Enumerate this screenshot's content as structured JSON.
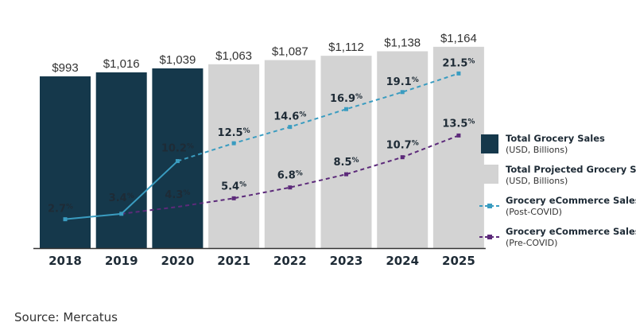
{
  "chart_data": {
    "type": "bar",
    "categories": [
      "2018",
      "2019",
      "2020",
      "2021",
      "2022",
      "2023",
      "2024",
      "2025"
    ],
    "ylim": [
      0,
      1200
    ],
    "bar_series": [
      {
        "name": "Total Grocery Sales",
        "unit": "(USD, Billions)",
        "color": "#15384b",
        "values": [
          993,
          1016,
          1039,
          null,
          null,
          null,
          null,
          null
        ],
        "labels": [
          "$993",
          "$1,016",
          "$1,039",
          null,
          null,
          null,
          null,
          null
        ]
      },
      {
        "name": "Total Projected Grocery Sales",
        "unit": "(USD, Billions)",
        "color": "#d3d3d3",
        "values": [
          null,
          null,
          null,
          1063,
          1087,
          1112,
          1138,
          1164
        ],
        "labels": [
          null,
          null,
          null,
          "$1,063",
          "$1,087",
          "$1,112",
          "$1,138",
          "$1,164"
        ]
      }
    ],
    "line_series": [
      {
        "name": "Grocery eCommerce Sales %",
        "name_detail": "(Post-COVID)",
        "color": "#3a9cc0",
        "values": [
          2.7,
          3.4,
          10.2,
          12.5,
          14.6,
          16.9,
          19.1,
          21.5
        ],
        "labels": [
          "2.7",
          "3.4",
          "10.2",
          "12.5",
          "14.6",
          "16.9",
          "19.1",
          "21.5"
        ]
      },
      {
        "name": "Grocery eCommerce Sales %",
        "name_detail": "(Pre-COVID)",
        "color": "#5c2a7a",
        "values": [
          null,
          3.4,
          4.3,
          5.4,
          6.8,
          8.5,
          10.7,
          13.5
        ],
        "labels": [
          null,
          null,
          "4.3",
          "5.4",
          "6.8",
          "8.5",
          "10.7",
          "13.5"
        ]
      }
    ],
    "line_ylim": [
      0,
      25
    ],
    "pct_symbol": "%"
  },
  "source": "Source: Mercatus"
}
